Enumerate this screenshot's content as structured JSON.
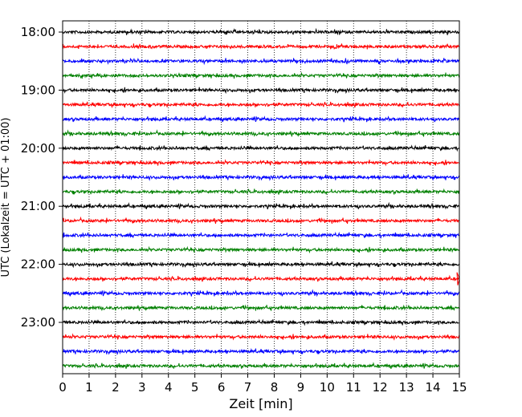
{
  "chart_data": {
    "type": "line",
    "title": "",
    "xlabel": "Zeit  [min]",
    "ylabel": "UTC (Lokalzeit = UTC + 01:00)",
    "xlim": [
      0,
      15
    ],
    "x_ticks": [
      0,
      1,
      2,
      3,
      4,
      5,
      6,
      7,
      8,
      9,
      10,
      11,
      12,
      13,
      14,
      15
    ],
    "y_ticks": [
      "18:00",
      "19:00",
      "20:00",
      "21:00",
      "22:00",
      "23:00"
    ],
    "grid": "vertical dotted",
    "trace_interval_min": 15,
    "trace_colors": [
      "#000000",
      "#ff0000",
      "#0000ff",
      "#008000"
    ],
    "traces": [
      {
        "start": "18:00",
        "color": "#000000"
      },
      {
        "start": "18:15",
        "color": "#ff0000"
      },
      {
        "start": "18:30",
        "color": "#0000ff"
      },
      {
        "start": "18:45",
        "color": "#008000"
      },
      {
        "start": "19:00",
        "color": "#000000"
      },
      {
        "start": "19:15",
        "color": "#ff0000"
      },
      {
        "start": "19:30",
        "color": "#0000ff"
      },
      {
        "start": "19:45",
        "color": "#008000"
      },
      {
        "start": "20:00",
        "color": "#000000"
      },
      {
        "start": "20:15",
        "color": "#ff0000"
      },
      {
        "start": "20:30",
        "color": "#0000ff"
      },
      {
        "start": "20:45",
        "color": "#008000"
      },
      {
        "start": "21:00",
        "color": "#000000"
      },
      {
        "start": "21:15",
        "color": "#ff0000"
      },
      {
        "start": "21:30",
        "color": "#0000ff"
      },
      {
        "start": "21:45",
        "color": "#008000"
      },
      {
        "start": "22:00",
        "color": "#000000"
      },
      {
        "start": "22:15",
        "color": "#ff0000"
      },
      {
        "start": "22:30",
        "color": "#0000ff"
      },
      {
        "start": "22:45",
        "color": "#008000"
      },
      {
        "start": "23:00",
        "color": "#000000"
      },
      {
        "start": "23:15",
        "color": "#ff0000"
      },
      {
        "start": "23:30",
        "color": "#0000ff"
      },
      {
        "start": "23:45",
        "color": "#008000"
      }
    ]
  }
}
